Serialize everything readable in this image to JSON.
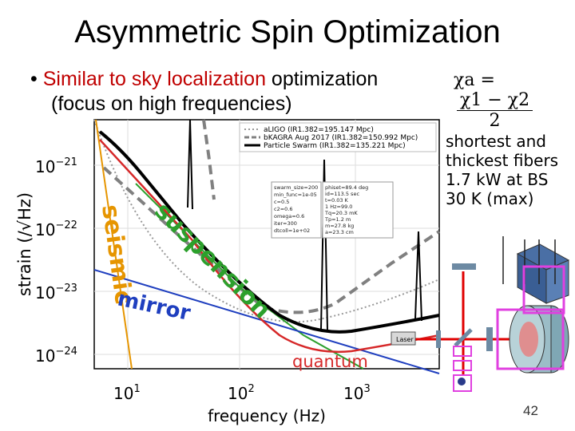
{
  "title": "Asymmetric Spin Optimization",
  "bullet": {
    "marker": "•",
    "highlight": "Similar to sky localization",
    "rest1": " optimization",
    "line2": "(focus on high frequencies)"
  },
  "formula": {
    "lhs": "χa =",
    "numerator": "χ1 − χ2",
    "denominator": "2"
  },
  "side_notes": [
    "shortest and",
    "thickest fibers",
    "1.7 kW at BS",
    "30 K (max)"
  ],
  "page_number": "42",
  "plot": {
    "ylabel": "strain (/√Hz)",
    "xlabel": "frequency (Hz)",
    "y_ticks": [
      {
        "base": "10",
        "exp": "−21"
      },
      {
        "base": "10",
        "exp": "−22"
      },
      {
        "base": "10",
        "exp": "−23"
      },
      {
        "base": "10",
        "exp": "−24"
      }
    ],
    "x_ticks": [
      {
        "base": "10",
        "exp": "1"
      },
      {
        "base": "10",
        "exp": "2"
      },
      {
        "base": "10",
        "exp": "3"
      }
    ],
    "legend": [
      "aLIGO (IR1.382=195.147 Mpc)",
      "bKAGRA Aug 2017 (IR1.382=150.992 Mpc)",
      "Particle Swarm (IR1.382=135.221 Mpc)"
    ],
    "param_box_1": [
      "swarm_size=200",
      "min_func=1e-05",
      "c=0.5",
      "c2=0.6",
      "omega=0.6",
      "iter=300",
      "dtcoll=1e+02"
    ],
    "param_box_2": [
      "phiset=89.4 deg",
      "id=113.5 sec",
      "t=0.03 K",
      "1 Hz=99.0",
      "Tq=20.3 mK",
      "Tp=1.2 m",
      "m=27.8 kg",
      "a=23.3 cm"
    ],
    "noise_labels": {
      "seismic": "seismic",
      "suspension": "suspension",
      "mirror": "mirror",
      "quantum": "quantum"
    },
    "laser_label": "Laser"
  },
  "colors": {
    "highlight_red": "#c00000",
    "seismic": "#e69500",
    "suspension": "#2ca02c",
    "mirror": "#1f3fbf",
    "quantum": "#d62728",
    "swarm": "#000000",
    "kagra": "#808080",
    "aligo": "#999999",
    "optics_box": "#e040e0",
    "beam": "#e00000"
  }
}
